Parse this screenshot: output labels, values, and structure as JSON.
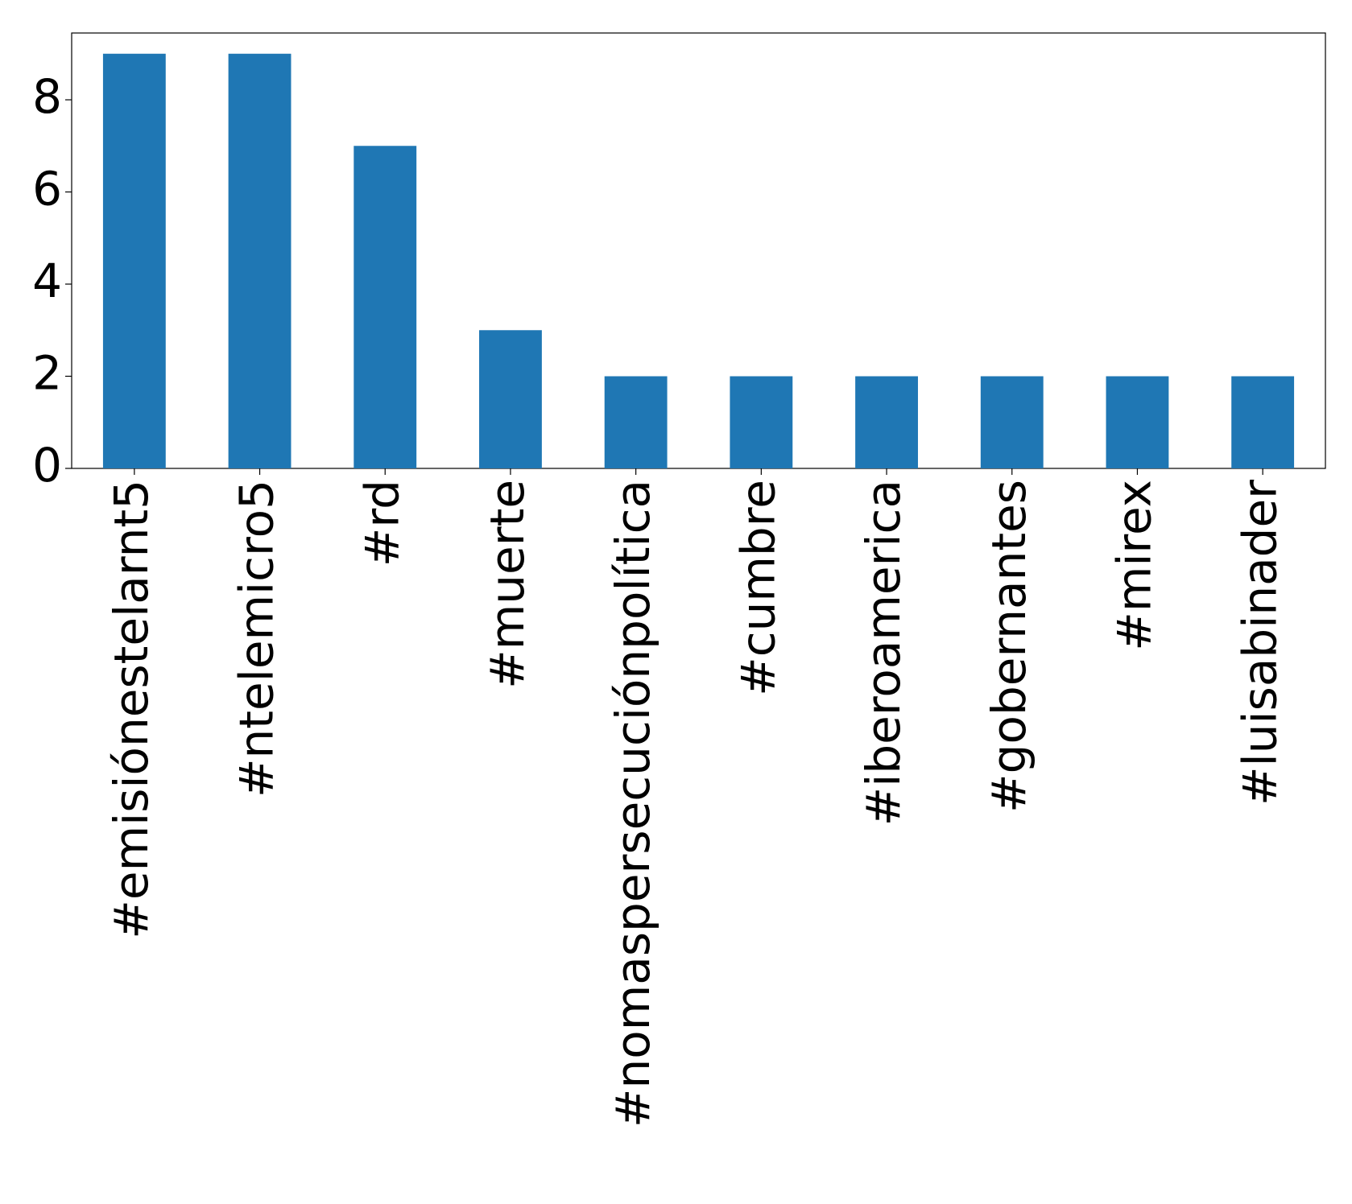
{
  "chart_data": {
    "type": "bar",
    "categories": [
      "#emisiónestelarnt5",
      "#ntelemicro5",
      "#rd",
      "#muerte",
      "#nomaspersecuciónpolítica",
      "#cumbre",
      "#iberoamerica",
      "#gobernantes",
      "#mirex",
      "#luisabinader"
    ],
    "values": [
      9,
      9,
      7,
      3,
      2,
      2,
      2,
      2,
      2,
      2
    ],
    "color": "#1f77b4",
    "ylim": [
      0,
      9.45
    ],
    "yticks": [
      0,
      2,
      4,
      6,
      8
    ],
    "grid": false
  }
}
